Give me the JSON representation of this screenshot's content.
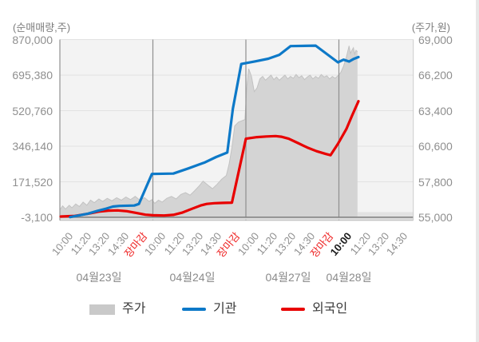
{
  "colors": {
    "plot_bg": "#f3f3f3",
    "grid": "#e2e2e2",
    "separator": "#8f8f8f",
    "left_axis_line": "#9a9a9a",
    "right_axis_line": "#cccccc",
    "baseline_dark": "#7e7e7e",
    "baseline_band": "#dcdcdc",
    "bottom_border": "#b5b5b5",
    "after_data_band": "#e2e2e2",
    "price_area": "#d4d4d4",
    "price_edge": "#c2c2c2",
    "institution_line": "#0d79c8",
    "foreigner_line": "#e80000",
    "close_tick_text": "#ee2222",
    "current_tick_text": "#1b1b1b"
  },
  "chart_data": {
    "type": "area",
    "title": "",
    "left_axis": {
      "title": "(순매매량,주)",
      "tick_labels": [
        "870,000",
        "695,380",
        "520,760",
        "346,140",
        "171,520",
        "-3,100"
      ],
      "min": -3100,
      "max": 870000
    },
    "right_axis": {
      "title": "(주가,원)",
      "tick_labels": [
        "69,000",
        "66,200",
        "63,400",
        "60,600",
        "57,800",
        "55,000"
      ],
      "min": 55000,
      "max": 69000
    },
    "x_axis": {
      "ticks_per_day": 5,
      "ticks": [
        {
          "label": "10:00"
        },
        {
          "label": "11:20"
        },
        {
          "label": "13:20"
        },
        {
          "label": "14:30"
        },
        {
          "label": "장마감",
          "close": true
        },
        {
          "label": "10:00"
        },
        {
          "label": "11:20"
        },
        {
          "label": "13:20"
        },
        {
          "label": "14:30"
        },
        {
          "label": "장마감",
          "close": true
        },
        {
          "label": "10:00"
        },
        {
          "label": "11:20"
        },
        {
          "label": "13:20"
        },
        {
          "label": "14:30"
        },
        {
          "label": "장마감",
          "close": true
        },
        {
          "label": "10:00",
          "current": true
        },
        {
          "label": "11:20"
        },
        {
          "label": "13:20"
        },
        {
          "label": "14:30"
        }
      ],
      "day_labels": [
        "04월23일",
        "04월24일",
        "04월27일",
        "04월28일"
      ]
    },
    "grid": true,
    "legend": {
      "position": "bottom",
      "items": [
        {
          "label": "주가",
          "swatch": "area",
          "color": "#c9c9c9"
        },
        {
          "label": "기관",
          "swatch": "line",
          "color": "#0d79c8"
        },
        {
          "label": "외국인",
          "swatch": "line",
          "color": "#e80000"
        }
      ]
    },
    "series": [
      {
        "name": "주가",
        "type": "area",
        "axis": "right",
        "color": "#d4d4d4",
        "points": [
          [
            -0.5,
            55600
          ],
          [
            -0.35,
            55900
          ],
          [
            -0.2,
            55650
          ],
          [
            0,
            55950
          ],
          [
            0.15,
            55750
          ],
          [
            0.35,
            56050
          ],
          [
            0.55,
            55850
          ],
          [
            0.75,
            56200
          ],
          [
            0.95,
            55950
          ],
          [
            1.15,
            56350
          ],
          [
            1.35,
            56150
          ],
          [
            1.6,
            56450
          ],
          [
            1.8,
            56250
          ],
          [
            2.05,
            56500
          ],
          [
            2.3,
            56300
          ],
          [
            2.55,
            56550
          ],
          [
            2.8,
            56350
          ],
          [
            3.05,
            56600
          ],
          [
            3.3,
            56400
          ],
          [
            3.55,
            56650
          ],
          [
            3.8,
            56350
          ],
          [
            4.05,
            56550
          ],
          [
            4.3,
            56250
          ],
          [
            4.45,
            56400
          ],
          [
            4.6,
            56100
          ],
          [
            4.8,
            56350
          ],
          [
            5,
            56200
          ],
          [
            5.25,
            56500
          ],
          [
            5.5,
            56650
          ],
          [
            5.75,
            56450
          ],
          [
            6,
            56800
          ],
          [
            6.25,
            56950
          ],
          [
            6.5,
            56750
          ],
          [
            6.75,
            57100
          ],
          [
            7,
            57500
          ],
          [
            7.2,
            57850
          ],
          [
            7.45,
            57550
          ],
          [
            7.7,
            57250
          ],
          [
            7.95,
            57600
          ],
          [
            8.2,
            58000
          ],
          [
            8.45,
            58300
          ],
          [
            8.6,
            59200
          ],
          [
            8.75,
            60500
          ],
          [
            8.9,
            62200
          ],
          [
            9.1,
            62500
          ],
          [
            9.45,
            62700
          ],
          [
            9.55,
            65300
          ],
          [
            9.65,
            66700
          ],
          [
            9.8,
            66100
          ],
          [
            9.95,
            64900
          ],
          [
            10.1,
            65200
          ],
          [
            10.25,
            65900
          ],
          [
            10.4,
            66100
          ],
          [
            10.55,
            65800
          ],
          [
            10.7,
            66000
          ],
          [
            10.85,
            66200
          ],
          [
            11,
            65850
          ],
          [
            11.15,
            66050
          ],
          [
            11.3,
            65800
          ],
          [
            11.45,
            66000
          ],
          [
            11.6,
            66200
          ],
          [
            11.75,
            65900
          ],
          [
            11.9,
            66100
          ],
          [
            12.05,
            65950
          ],
          [
            12.2,
            66250
          ],
          [
            12.35,
            66000
          ],
          [
            12.5,
            66150
          ],
          [
            12.65,
            65850
          ],
          [
            12.8,
            66050
          ],
          [
            12.95,
            66200
          ],
          [
            13.1,
            65900
          ],
          [
            13.25,
            66100
          ],
          [
            13.4,
            65950
          ],
          [
            13.55,
            66250
          ],
          [
            13.7,
            66050
          ],
          [
            13.85,
            66150
          ],
          [
            14,
            65900
          ],
          [
            14.15,
            66100
          ],
          [
            14.3,
            65950
          ],
          [
            14.45,
            66150
          ],
          [
            14.6,
            66400
          ],
          [
            14.75,
            66900
          ],
          [
            14.9,
            67600
          ],
          [
            15.05,
            68500
          ],
          [
            15.12,
            67900
          ],
          [
            15.2,
            68150
          ],
          [
            15.28,
            68350
          ],
          [
            15.35,
            67850
          ],
          [
            15.42,
            68150
          ],
          [
            15.5,
            68050
          ]
        ]
      },
      {
        "name": "기관",
        "type": "line",
        "axis": "left",
        "color": "#0d79c8",
        "points": [
          [
            0.05,
            -2000
          ],
          [
            0.5,
            6000
          ],
          [
            1,
            15000
          ],
          [
            1.5,
            28000
          ],
          [
            2,
            40000
          ],
          [
            2.35,
            50000
          ],
          [
            2.7,
            53000
          ],
          [
            3.5,
            55000
          ],
          [
            3.75,
            63000
          ],
          [
            4.45,
            210000
          ],
          [
            5.6,
            212000
          ],
          [
            6.4,
            237000
          ],
          [
            7.3,
            267000
          ],
          [
            7.9,
            293000
          ],
          [
            8.5,
            315000
          ],
          [
            8.8,
            530000
          ],
          [
            9.25,
            750000
          ],
          [
            10,
            763000
          ],
          [
            10.7,
            776000
          ],
          [
            11.3,
            795000
          ],
          [
            11.9,
            838000
          ],
          [
            13.25,
            840000
          ],
          [
            14.45,
            758000
          ],
          [
            14.75,
            771000
          ],
          [
            15.05,
            762000
          ],
          [
            15.3,
            775000
          ],
          [
            15.55,
            784000
          ]
        ]
      },
      {
        "name": "외국인",
        "type": "line",
        "axis": "left",
        "color": "#e80000",
        "points": [
          [
            -0.45,
            1000
          ],
          [
            0.3,
            4000
          ],
          [
            1,
            14000
          ],
          [
            1.6,
            25000
          ],
          [
            2.1,
            30000
          ],
          [
            2.6,
            31000
          ],
          [
            3.1,
            27000
          ],
          [
            3.6,
            19000
          ],
          [
            4.1,
            10000
          ],
          [
            4.5,
            7000
          ],
          [
            5.1,
            6000
          ],
          [
            5.6,
            9000
          ],
          [
            6.1,
            21000
          ],
          [
            6.6,
            39000
          ],
          [
            7.1,
            56000
          ],
          [
            7.4,
            63000
          ],
          [
            7.8,
            66500
          ],
          [
            8.3,
            68000
          ],
          [
            8.75,
            69000
          ],
          [
            9.5,
            383000
          ],
          [
            10.1,
            391000
          ],
          [
            10.6,
            394000
          ],
          [
            11.1,
            396000
          ],
          [
            11.4,
            393000
          ],
          [
            11.8,
            383000
          ],
          [
            12.3,
            362000
          ],
          [
            12.8,
            340000
          ],
          [
            13.3,
            322000
          ],
          [
            13.8,
            308000
          ],
          [
            14.05,
            302000
          ],
          [
            14.45,
            358000
          ],
          [
            14.9,
            430000
          ],
          [
            15.2,
            495000
          ],
          [
            15.55,
            567000
          ]
        ]
      }
    ]
  }
}
